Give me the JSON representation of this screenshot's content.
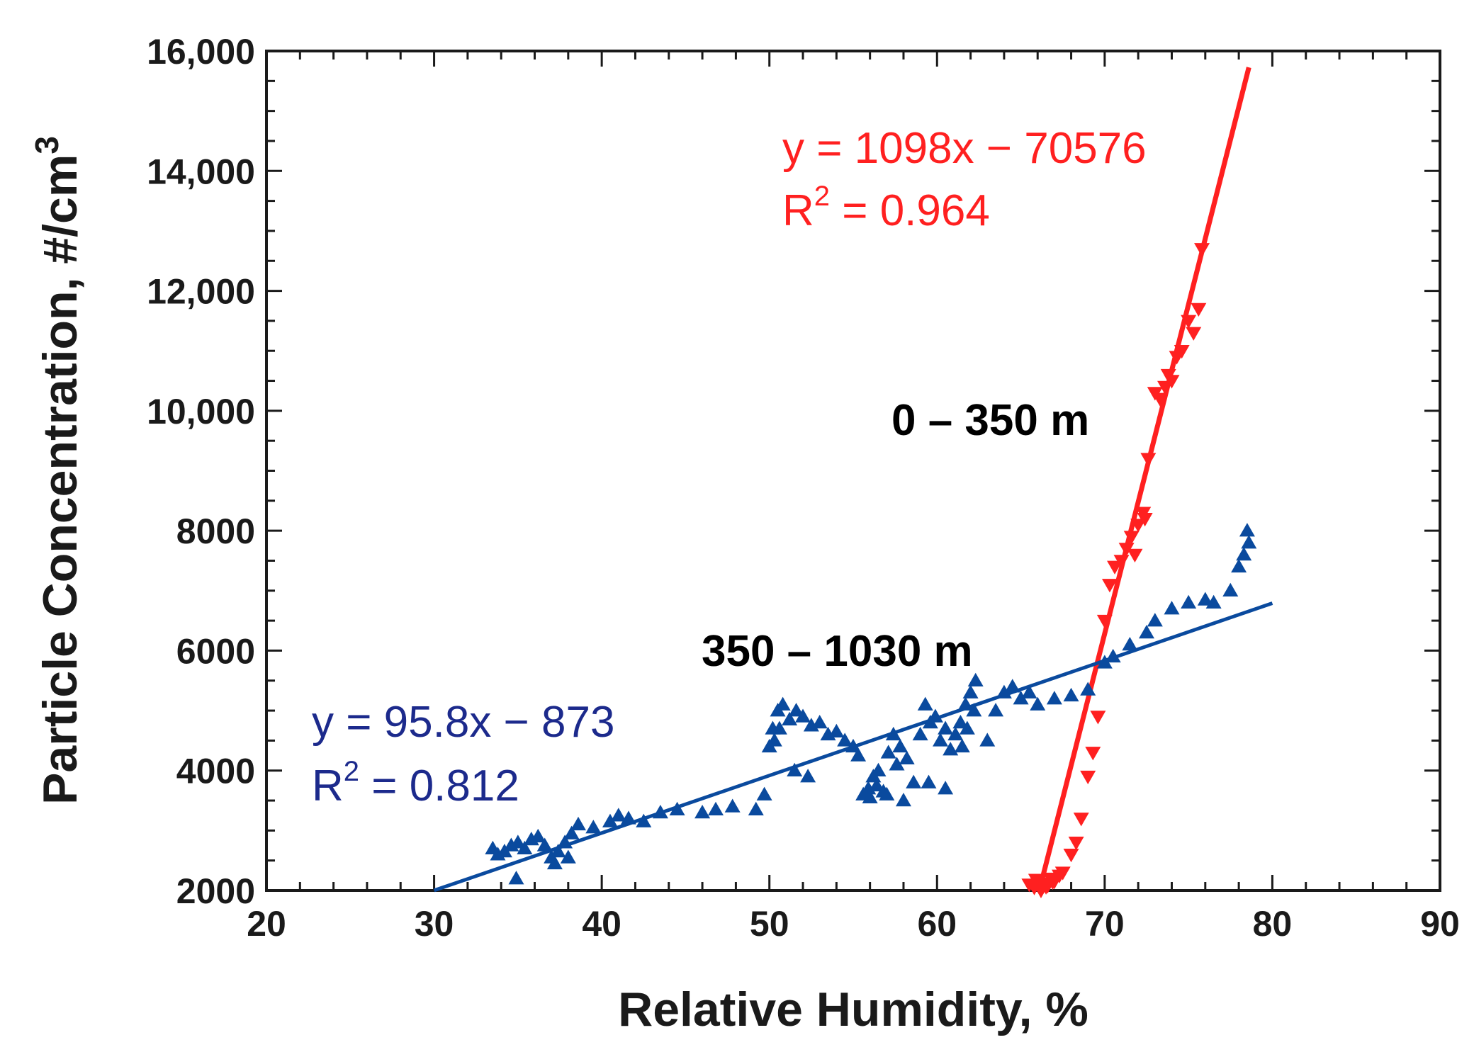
{
  "chart_data": {
    "type": "scatter",
    "title": "",
    "xlabel": "Relative Humidity, %",
    "ylabel_main": "Particle Concentration, #/cm",
    "ylabel_sup": "3",
    "xlim": [
      20,
      90
    ],
    "ylim": [
      2000,
      16000
    ],
    "x_ticks": [
      20,
      30,
      40,
      50,
      60,
      70,
      80,
      90
    ],
    "x_tick_labels": [
      "20",
      "30",
      "40",
      "50",
      "60",
      "70",
      "80",
      "90"
    ],
    "y_ticks": [
      2000,
      4000,
      6000,
      8000,
      10000,
      12000,
      14000,
      16000
    ],
    "y_tick_labels": [
      "2000",
      "4000",
      "6000",
      "8000",
      "10,000",
      "12,000",
      "14,000",
      "16,000"
    ],
    "grid": false,
    "colors": {
      "red": "#ff2020",
      "blue": "#0a4a9e",
      "blue_text": "#1c2a8c",
      "axis": "#1a1a1a"
    },
    "series": [
      {
        "name": "0 – 350 m",
        "marker": "triangle-down",
        "color": "#ff2020",
        "x": [
          65.5,
          65.8,
          66.0,
          66.2,
          66.4,
          66.6,
          66.8,
          67.0,
          67.3,
          66.1,
          65.9,
          66.5,
          66.9,
          67.5,
          68.0,
          68.3,
          68.6,
          69.0,
          69.3,
          69.6,
          70.0,
          70.3,
          70.6,
          71.0,
          71.3,
          71.6,
          72.0,
          72.3,
          72.6,
          73.0,
          73.3,
          73.6,
          74.0,
          74.3,
          74.6,
          75.0,
          75.3,
          75.6,
          75.8,
          71.8,
          72.4,
          73.8
        ],
        "y": [
          2100,
          2050,
          2150,
          2000,
          2100,
          2080,
          2200,
          2150,
          2250,
          2120,
          2180,
          2060,
          2140,
          2300,
          2600,
          2800,
          3200,
          3900,
          4300,
          4900,
          6500,
          7100,
          7400,
          7500,
          7700,
          7900,
          8100,
          8300,
          9200,
          10300,
          10200,
          10400,
          10500,
          10900,
          11000,
          11500,
          11300,
          11700,
          12700,
          7600,
          8200,
          10600
        ]
      },
      {
        "name": "350 – 1030 m",
        "marker": "triangle-up",
        "color": "#0a4a9e",
        "x": [
          33.5,
          33.8,
          34.2,
          34.6,
          35.0,
          35.4,
          35.8,
          36.2,
          36.6,
          37.0,
          37.4,
          37.8,
          38.2,
          38.6,
          39.5,
          40.5,
          41.0,
          41.6,
          42.5,
          43.5,
          44.5,
          46.0,
          46.8,
          47.8,
          49.2,
          49.7,
          50.0,
          50.2,
          50.5,
          50.8,
          51.2,
          51.6,
          52.0,
          52.5,
          53.0,
          53.5,
          54.0,
          54.5,
          55.0,
          55.3,
          55.6,
          55.9,
          56.2,
          56.5,
          56.8,
          57.1,
          57.4,
          57.8,
          58.2,
          58.6,
          59.0,
          59.3,
          59.6,
          59.9,
          60.2,
          60.5,
          60.8,
          61.1,
          61.4,
          61.7,
          62.0,
          62.3,
          61.5,
          61.8,
          62.2,
          63.0,
          63.5,
          64.0,
          64.5,
          65.0,
          65.5,
          66.0,
          67.0,
          68.0,
          69.0,
          70.0,
          70.5,
          71.5,
          72.5,
          73.0,
          74.0,
          75.0,
          76.0,
          76.5,
          77.5,
          78.0,
          78.3,
          78.6,
          78.5,
          50.3,
          50.6,
          51.5,
          52.3,
          56.0,
          57.0,
          58.0,
          59.5,
          60.5,
          34.9,
          37.2,
          38.0,
          56.4,
          57.6
        ],
        "y": [
          2700,
          2600,
          2650,
          2750,
          2800,
          2700,
          2850,
          2900,
          2750,
          2550,
          2650,
          2800,
          2950,
          3100,
          3050,
          3150,
          3250,
          3200,
          3150,
          3300,
          3350,
          3300,
          3350,
          3400,
          3350,
          3600,
          4400,
          4700,
          5000,
          5100,
          4850,
          5000,
          4900,
          4750,
          4800,
          4600,
          4650,
          4500,
          4400,
          4250,
          3600,
          3700,
          3900,
          4000,
          3650,
          4300,
          4600,
          4400,
          4200,
          3800,
          4600,
          5100,
          4800,
          4900,
          4500,
          4700,
          4350,
          4600,
          4800,
          5100,
          5300,
          5500,
          4400,
          4700,
          5000,
          4500,
          5000,
          5300,
          5400,
          5200,
          5300,
          5100,
          5200,
          5250,
          5350,
          5800,
          5900,
          6100,
          6300,
          6500,
          6700,
          6800,
          6850,
          6800,
          7000,
          7400,
          7600,
          7800,
          8000,
          4500,
          4700,
          4000,
          3900,
          3550,
          3600,
          3500,
          3800,
          3700,
          2200,
          2450,
          2550,
          3750,
          4100
        ]
      }
    ],
    "fits": [
      {
        "name": "0 – 350 m fit",
        "slope": 1098,
        "intercept": -70576,
        "x_range": [
          66.2,
          78.6
        ],
        "color": "#ff2020"
      },
      {
        "name": "350 – 1030 m fit",
        "slope": 95.8,
        "intercept": -873,
        "x_range": [
          30,
          80
        ],
        "color": "#0a4a9e"
      }
    ],
    "annotations": {
      "red_equation": "y = 1098x − 70576",
      "red_r2_prefix": "R",
      "red_r2_sup": "2",
      "red_r2_value": " = 0.964",
      "blue_equation": "y = 95.8x − 873",
      "blue_r2_prefix": "R",
      "blue_r2_sup": "2",
      "blue_r2_value": " = 0.812",
      "label_low": "0 – 350 m",
      "label_high": "350 – 1030 m"
    }
  }
}
